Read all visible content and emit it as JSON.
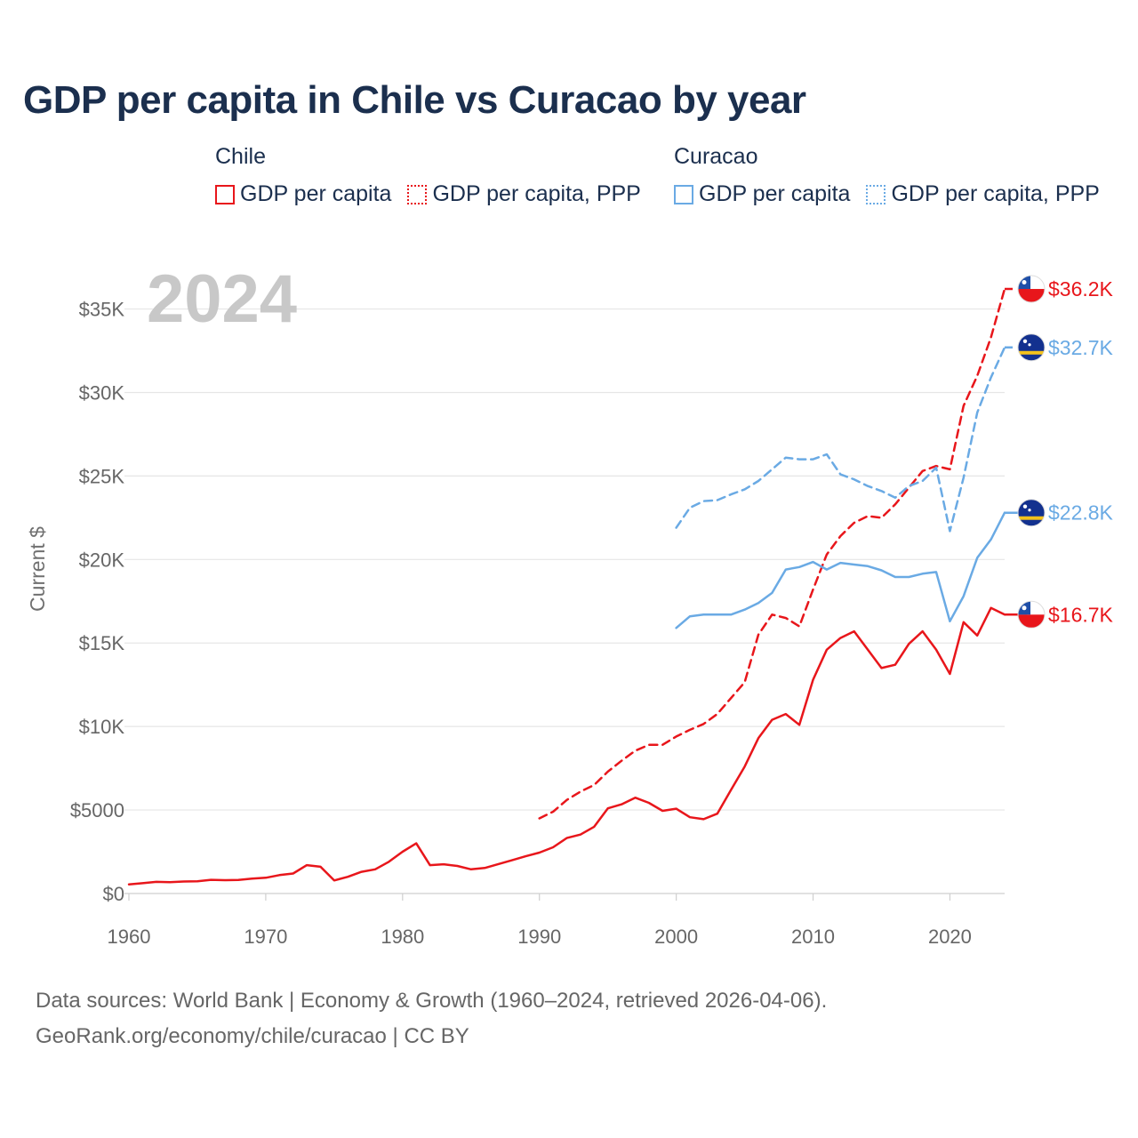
{
  "title": "GDP per capita in Chile vs Curacao by year",
  "legend": {
    "chile": {
      "title": "Chile",
      "items": [
        {
          "label": "GDP per capita",
          "style": "solid",
          "color": "#e8161b"
        },
        {
          "label": "GDP per capita, PPP",
          "style": "dotted",
          "color": "#e8161b"
        }
      ]
    },
    "curacao": {
      "title": "Curacao",
      "items": [
        {
          "label": "GDP per capita",
          "style": "solid",
          "color": "#6aaae4"
        },
        {
          "label": "GDP per capita, PPP",
          "style": "dotted",
          "color": "#6aaae4"
        }
      ]
    }
  },
  "year_watermark": "2024",
  "footer": {
    "line1": "Data sources: World Bank | Economy & Growth (1960–2024, retrieved 2026-04-06).",
    "line2": "GeoRank.org/economy/chile/curacao | CC BY"
  },
  "chart_data": {
    "type": "line",
    "title": "GDP per capita in Chile vs Curacao by year",
    "xlabel": "",
    "ylabel": "Current $",
    "xlim": [
      1960,
      2024
    ],
    "ylim": [
      0,
      37000
    ],
    "grid": true,
    "x_ticks": [
      1960,
      1970,
      1980,
      1990,
      2000,
      2010,
      2020
    ],
    "x_tick_labels": [
      "1960",
      "1970",
      "1980",
      "1990",
      "2000",
      "2010",
      "2020"
    ],
    "y_ticks": [
      0,
      5000,
      10000,
      15000,
      20000,
      25000,
      30000,
      35000
    ],
    "y_tick_labels": [
      "$0",
      "$5000",
      "$10K",
      "$15K",
      "$20K",
      "$25K",
      "$30K",
      "$35K"
    ],
    "series": [
      {
        "name": "Chile — GDP per capita",
        "country": "Chile",
        "color": "#e8161b",
        "dash": "solid",
        "end_label": "$16.7K",
        "flag": "chile",
        "x": [
          1960,
          1961,
          1962,
          1963,
          1964,
          1965,
          1966,
          1967,
          1968,
          1969,
          1970,
          1971,
          1972,
          1973,
          1974,
          1975,
          1976,
          1977,
          1978,
          1979,
          1980,
          1981,
          1982,
          1983,
          1984,
          1985,
          1986,
          1987,
          1988,
          1989,
          1990,
          1991,
          1992,
          1993,
          1994,
          1995,
          1996,
          1997,
          1998,
          1999,
          2000,
          2001,
          2002,
          2003,
          2004,
          2005,
          2006,
          2007,
          2008,
          2009,
          2010,
          2011,
          2012,
          2013,
          2014,
          2015,
          2016,
          2017,
          2018,
          2019,
          2020,
          2021,
          2022,
          2023,
          2024
        ],
        "values": [
          550,
          620,
          700,
          680,
          720,
          730,
          820,
          800,
          810,
          890,
          940,
          1100,
          1200,
          1700,
          1600,
          780,
          1000,
          1300,
          1450,
          1900,
          2500,
          3000,
          1700,
          1750,
          1650,
          1450,
          1530,
          1760,
          1990,
          2230,
          2450,
          2770,
          3320,
          3530,
          4000,
          5100,
          5340,
          5740,
          5430,
          4950,
          5080,
          4570,
          4450,
          4780,
          6200,
          7600,
          9300,
          10400,
          10750,
          10100,
          12800,
          14600,
          15300,
          15700,
          14600,
          13500,
          13700,
          14950,
          15700,
          14600,
          13150,
          16250,
          15450,
          17100,
          16700
        ]
      },
      {
        "name": "Chile — GDP per capita, PPP",
        "country": "Chile",
        "color": "#e8161b",
        "dash": "dashed",
        "end_label": "$36.2K",
        "flag": "chile",
        "x": [
          1990,
          1991,
          1992,
          1993,
          1994,
          1995,
          1996,
          1997,
          1998,
          1999,
          2000,
          2001,
          2002,
          2003,
          2004,
          2005,
          2006,
          2007,
          2008,
          2009,
          2010,
          2011,
          2012,
          2013,
          2014,
          2015,
          2016,
          2017,
          2018,
          2019,
          2020,
          2021,
          2022,
          2023,
          2024
        ],
        "values": [
          4500,
          4900,
          5600,
          6100,
          6500,
          7300,
          7950,
          8550,
          8900,
          8900,
          9400,
          9800,
          10150,
          10750,
          11700,
          12650,
          15500,
          16700,
          16500,
          16000,
          18200,
          20300,
          21400,
          22200,
          22600,
          22500,
          23300,
          24300,
          25300,
          25600,
          25400,
          29200,
          31000,
          33300,
          36200
        ]
      },
      {
        "name": "Curacao — GDP per capita",
        "country": "Curacao",
        "color": "#6aaae4",
        "dash": "solid",
        "end_label": "$22.8K",
        "flag": "curacao",
        "x": [
          2000,
          2001,
          2002,
          2003,
          2004,
          2005,
          2006,
          2007,
          2008,
          2009,
          2010,
          2011,
          2012,
          2013,
          2014,
          2015,
          2016,
          2017,
          2018,
          2019,
          2020,
          2021,
          2022,
          2023,
          2024
        ],
        "values": [
          15900,
          16600,
          16700,
          16700,
          16700,
          17000,
          17400,
          18000,
          19400,
          19550,
          19850,
          19400,
          19800,
          19700,
          19600,
          19350,
          18950,
          18950,
          19150,
          19250,
          16300,
          17800,
          20100,
          21200,
          22800
        ]
      },
      {
        "name": "Curacao — GDP per capita, PPP",
        "country": "Curacao",
        "color": "#6aaae4",
        "dash": "dashed",
        "end_label": "$32.7K",
        "flag": "curacao",
        "x": [
          2000,
          2001,
          2002,
          2003,
          2004,
          2005,
          2006,
          2007,
          2008,
          2009,
          2010,
          2011,
          2012,
          2013,
          2014,
          2015,
          2016,
          2017,
          2018,
          2019,
          2020,
          2021,
          2022,
          2023,
          2024
        ],
        "values": [
          21900,
          23100,
          23500,
          23550,
          23900,
          24200,
          24700,
          25400,
          26100,
          26000,
          26000,
          26300,
          25100,
          24800,
          24400,
          24100,
          23700,
          24400,
          24700,
          25500,
          21700,
          24900,
          28800,
          30900,
          32700
        ]
      }
    ]
  }
}
